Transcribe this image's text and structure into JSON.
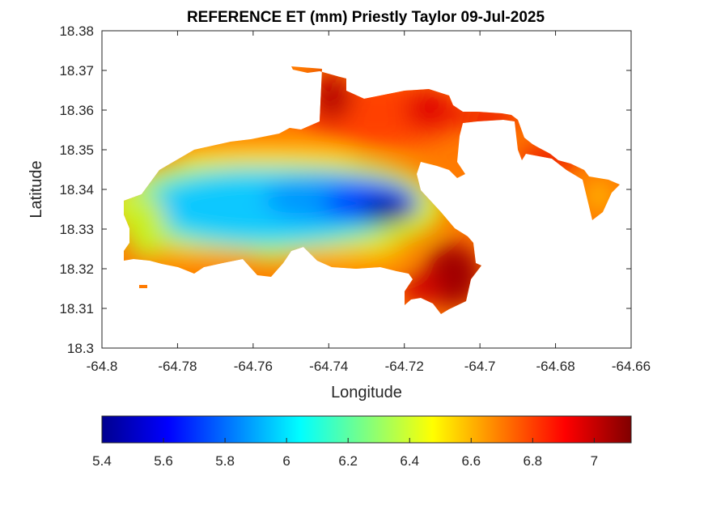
{
  "figure": {
    "title": "REFERENCE ET (mm) Priestly Taylor 09-Jul-2025",
    "xlabel": "Longitude",
    "ylabel": "Latitude"
  },
  "chart_data": {
    "type": "heatmap",
    "title": "REFERENCE ET (mm) Priestly Taylor 09-Jul-2025",
    "xlabel": "Longitude",
    "ylabel": "Latitude",
    "xlim": [
      -64.8,
      -64.66
    ],
    "ylim": [
      18.3,
      18.38
    ],
    "xticks": [
      -64.8,
      -64.78,
      -64.76,
      -64.74,
      -64.72,
      -64.7,
      -64.68,
      -64.66
    ],
    "yticks": [
      18.3,
      18.31,
      18.32,
      18.33,
      18.34,
      18.35,
      18.36,
      18.37,
      18.38
    ],
    "xtick_labels": [
      "-64.8",
      "-64.78",
      "-64.76",
      "-64.74",
      "-64.72",
      "-64.7",
      "-64.68",
      "-64.66"
    ],
    "ytick_labels": [
      "18.3",
      "18.31",
      "18.32",
      "18.33",
      "18.34",
      "18.35",
      "18.36",
      "18.37",
      "18.38"
    ],
    "colormap": "jet",
    "colorbar": {
      "orientation": "horizontal",
      "range": [
        5.4,
        7.12
      ],
      "ticks": [
        5.4,
        5.6,
        5.8,
        6,
        6.2,
        6.4,
        6.6,
        6.8,
        7
      ],
      "tick_labels": [
        "5.4",
        "5.6",
        "5.8",
        "6",
        "6.2",
        "6.4",
        "6.6",
        "6.8",
        "7"
      ]
    },
    "field_minimum": {
      "lon": -64.729,
      "lat": 18.334,
      "value": 5.4
    },
    "field_maximum": {
      "lon": -64.704,
      "lat": 18.317,
      "value": 7.12
    },
    "grid": false
  }
}
